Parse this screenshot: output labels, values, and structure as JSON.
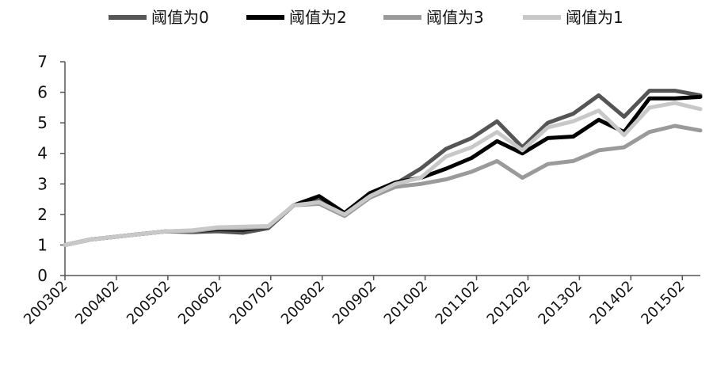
{
  "chart_data": {
    "type": "line",
    "title": "",
    "xlabel": "",
    "ylabel": "",
    "ylim": [
      0,
      7
    ],
    "yticks": [
      "0",
      "1",
      "2",
      "3",
      "4",
      "5",
      "6",
      "7"
    ],
    "xtick_labels": [
      "200302",
      "200402",
      "200502",
      "200602",
      "200702",
      "200802",
      "200902",
      "201002",
      "201102",
      "201202",
      "201302",
      "201402",
      "201502"
    ],
    "grid": false,
    "legend_position": "top",
    "x": [
      "200302",
      "200308",
      "200402",
      "200408",
      "200502",
      "200508",
      "200602",
      "200608",
      "200702",
      "200708",
      "200802",
      "200808",
      "200902",
      "200908",
      "201002",
      "201008",
      "201102",
      "201108",
      "201202",
      "201208",
      "201302",
      "201308",
      "201402",
      "201408",
      "201502",
      "201508"
    ],
    "series": [
      {
        "name": "阈值为0",
        "color": "#555555",
        "width": 5,
        "values": [
          1.0,
          1.18,
          1.27,
          1.36,
          1.45,
          1.42,
          1.45,
          1.4,
          1.55,
          2.3,
          2.45,
          2.0,
          2.7,
          3.0,
          3.5,
          4.15,
          4.5,
          5.05,
          4.2,
          5.0,
          5.3,
          5.9,
          5.2,
          6.05,
          6.05,
          5.9
        ]
      },
      {
        "name": "阈值为2",
        "color": "#000000",
        "width": 5,
        "values": [
          1.0,
          1.18,
          1.27,
          1.36,
          1.45,
          1.45,
          1.52,
          1.5,
          1.6,
          2.3,
          2.6,
          2.05,
          2.7,
          3.05,
          3.2,
          3.5,
          3.85,
          4.4,
          4.0,
          4.5,
          4.55,
          5.1,
          4.7,
          5.8,
          5.8,
          5.85
        ]
      },
      {
        "name": "阈值为3",
        "color": "#9a9a9a",
        "width": 5,
        "values": [
          1.0,
          1.18,
          1.27,
          1.36,
          1.45,
          1.45,
          1.55,
          1.55,
          1.6,
          2.3,
          2.35,
          1.95,
          2.55,
          2.9,
          3.0,
          3.15,
          3.4,
          3.75,
          3.2,
          3.65,
          3.75,
          4.1,
          4.2,
          4.7,
          4.9,
          4.75
        ]
      },
      {
        "name": "阈值为1",
        "color": "#c8c8c8",
        "width": 5,
        "values": [
          1.0,
          1.18,
          1.27,
          1.36,
          1.45,
          1.48,
          1.58,
          1.6,
          1.62,
          2.3,
          2.4,
          2.0,
          2.6,
          3.0,
          3.2,
          3.9,
          4.2,
          4.7,
          4.1,
          4.85,
          5.05,
          5.4,
          4.6,
          5.5,
          5.65,
          5.45
        ]
      }
    ]
  }
}
